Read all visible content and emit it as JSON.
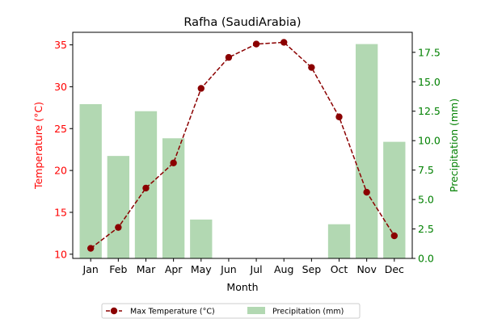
{
  "chart_data": {
    "type": "bar+line",
    "title": "Rafha (SaudiArabia)",
    "xlabel": "Month",
    "categories": [
      "Jan",
      "Feb",
      "Mar",
      "Apr",
      "May",
      "Jun",
      "Jul",
      "Aug",
      "Sep",
      "Oct",
      "Nov",
      "Dec"
    ],
    "left_axis": {
      "label": "Temperature (°C)",
      "color": "#ff0000",
      "ylim": [
        9.5,
        36.5
      ],
      "ticks": [
        10,
        15,
        20,
        25,
        30,
        35
      ],
      "tick_labels": [
        "10",
        "15",
        "20",
        "25",
        "30",
        "35"
      ]
    },
    "right_axis": {
      "label": "Precipitation (mm)",
      "color": "#008000",
      "ylim": [
        0,
        19.2
      ],
      "ticks": [
        0,
        2.5,
        5,
        7.5,
        10,
        12.5,
        15,
        17.5
      ],
      "tick_labels": [
        "0.0",
        "2.5",
        "5.0",
        "7.5",
        "10.0",
        "12.5",
        "15.0",
        "17.5"
      ]
    },
    "series": [
      {
        "name": "Max Temperature (°C)",
        "type": "line",
        "axis": "left",
        "color": "#8b0000",
        "values": [
          10.7,
          13.2,
          17.9,
          20.9,
          29.8,
          33.5,
          35.1,
          35.3,
          32.3,
          26.4,
          17.4,
          12.2
        ]
      },
      {
        "name": "Precipitation (mm)",
        "type": "bar",
        "axis": "right",
        "color": "#b2d8b2",
        "values": [
          13.1,
          8.7,
          12.5,
          10.2,
          3.3,
          0,
          0,
          0,
          0,
          2.9,
          18.2,
          9.9
        ]
      }
    ],
    "legend_position": "bottom-center",
    "grid": false
  }
}
